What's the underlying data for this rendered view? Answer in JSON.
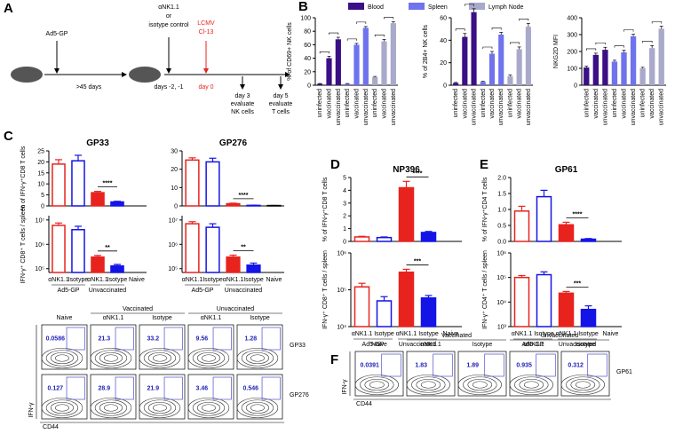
{
  "panel_labels": [
    "A",
    "B",
    "C",
    "D",
    "E",
    "F"
  ],
  "timeline": {
    "vaccine": "Ad5-GP",
    "interval": ">45 days",
    "treatment": [
      "αNK1.1",
      "or",
      "isotype control"
    ],
    "treatment_days": "days -2, -1",
    "infection": [
      "LCMV",
      "Cl-13"
    ],
    "infection_day": "day 0",
    "eval_nk": [
      "day 3",
      "evaluate",
      "NK cells"
    ],
    "eval_t": [
      "day 5",
      "evaluate",
      "T cells"
    ]
  },
  "chart_data": [
    {
      "type": "bar",
      "ylabel": "% of CD69+ NK cells",
      "categories": [
        "uninfected",
        "vaccinated",
        "unvaccinated"
      ],
      "series": [
        {
          "name": "Blood",
          "color": "#3b0f86",
          "values": [
            2,
            40,
            68
          ],
          "errors": [
            0.5,
            3,
            3
          ]
        },
        {
          "name": "Spleen",
          "color": "#6f73ee",
          "values": [
            2,
            60,
            85
          ],
          "errors": [
            0.5,
            2,
            2
          ]
        },
        {
          "name": "Lymph Node",
          "color": "#a9a9cb",
          "values": [
            12,
            65,
            92
          ],
          "errors": [
            1,
            3,
            2
          ]
        }
      ],
      "ylim": [
        0,
        100
      ],
      "yticks": [
        0,
        20,
        40,
        60,
        80,
        100
      ]
    },
    {
      "type": "bar",
      "ylabel": "% of 2B4+ NK cells",
      "categories": [
        "uninfected",
        "vaccinated",
        "unvaccinated"
      ],
      "series": [
        {
          "color": "#3b0f86",
          "values": [
            2,
            43,
            65
          ],
          "errors": [
            0.5,
            3,
            3
          ]
        },
        {
          "color": "#6f73ee",
          "values": [
            3,
            28,
            45
          ],
          "errors": [
            0.5,
            2,
            2
          ]
        },
        {
          "color": "#a9a9cb",
          "values": [
            8,
            32,
            52
          ],
          "errors": [
            1,
            2,
            3
          ]
        }
      ],
      "ylim": [
        0,
        60
      ],
      "yticks": [
        0,
        20,
        40,
        60
      ]
    },
    {
      "type": "bar",
      "ylabel": "NKG2D MFI",
      "categories": [
        "uninfected",
        "vaccinated",
        "unvaccinated"
      ],
      "series": [
        {
          "color": "#3b0f86",
          "values": [
            105,
            180,
            210
          ],
          "errors": [
            8,
            10,
            15
          ]
        },
        {
          "color": "#6f73ee",
          "values": [
            140,
            195,
            290
          ],
          "errors": [
            8,
            12,
            12
          ]
        },
        {
          "color": "#a9a9cb",
          "values": [
            100,
            220,
            335
          ],
          "errors": [
            6,
            15,
            15
          ]
        }
      ],
      "ylim": [
        0,
        400
      ],
      "yticks": [
        0,
        100,
        200,
        300,
        400
      ]
    },
    {
      "type": "bar",
      "title": "GP33",
      "ylabel": "% of IFN-γ⁺CD8 T cells",
      "values": [
        19,
        20.5,
        6,
        1.8,
        null
      ],
      "errors": [
        2,
        2.5,
        0.6,
        0.3,
        null
      ],
      "colors": [
        "#e8231e",
        "#1414e6",
        "#e8231e",
        "#1414e6",
        "#000000"
      ],
      "filled": [
        false,
        false,
        true,
        true,
        false
      ],
      "annotation": "****",
      "ylim": [
        0,
        25
      ],
      "yticks": [
        0,
        5,
        10,
        15,
        20,
        25
      ]
    },
    {
      "type": "bar",
      "title": "GP276",
      "ylabel": "",
      "values": [
        25,
        24,
        1.2,
        0.3,
        0.2
      ],
      "errors": [
        1.2,
        2,
        0.3,
        0.1,
        0.05
      ],
      "colors": [
        "#e8231e",
        "#1414e6",
        "#e8231e",
        "#1414e6",
        "#000000"
      ],
      "filled": [
        false,
        false,
        true,
        true,
        false
      ],
      "annotation": "****",
      "ylim": [
        0,
        30
      ],
      "yticks": [
        0,
        10,
        20,
        30
      ]
    },
    {
      "type": "bar",
      "ylabel": "IFN-γ⁺ CD8⁺ T cells / spleen",
      "categories": [
        "αNK1.1",
        "Isotype",
        "αNK1.1",
        "Isotype",
        "Naive"
      ],
      "groups": [
        "Ad5-GP",
        "Unvaccinated"
      ],
      "values": [
        6000000,
        4000000,
        300000,
        130000,
        null
      ],
      "errors": [
        1500000,
        1500000,
        50000,
        20000,
        null
      ],
      "colors": [
        "#e8231e",
        "#1414e6",
        "#e8231e",
        "#1414e6",
        "#000000"
      ],
      "filled": [
        false,
        false,
        true,
        true,
        false
      ],
      "annotation": "**",
      "log_scale": true,
      "ylim": [
        70000,
        15000000
      ],
      "yticks": [
        {
          "value": 100000,
          "label": "10⁵"
        },
        {
          "value": 1000000,
          "label": "10⁶"
        },
        {
          "value": 10000000,
          "label": "10⁷"
        }
      ]
    },
    {
      "type": "bar",
      "ylabel": "",
      "categories": [
        "αNK1.1",
        "Isotype",
        "αNK1.1",
        "Isotype",
        "Naive"
      ],
      "groups": [
        "Ad5-GP",
        "Unvaccinated"
      ],
      "values": [
        7000000,
        5000000,
        300000,
        140000,
        null
      ],
      "errors": [
        1500000,
        2000000,
        60000,
        30000,
        null
      ],
      "colors": [
        "#e8231e",
        "#1414e6",
        "#e8231e",
        "#1414e6",
        "#000000"
      ],
      "filled": [
        false,
        false,
        true,
        true,
        false
      ],
      "annotation": "**",
      "log_scale": true,
      "ylim": [
        70000,
        15000000
      ],
      "yticks": [
        {
          "value": 100000,
          "label": "10⁵"
        },
        {
          "value": 1000000,
          "label": "10⁶"
        },
        {
          "value": 10000000,
          "label": "10⁷"
        }
      ]
    },
    {
      "type": "bar",
      "title": "NP396",
      "ylabel": "% of IFN-γ⁺CD8 T cells",
      "values": [
        0.35,
        0.3,
        4.2,
        0.7,
        null
      ],
      "errors": [
        0.05,
        0.05,
        0.5,
        0.08,
        null
      ],
      "colors": [
        "#e8231e",
        "#1414e6",
        "#e8231e",
        "#1414e6",
        "#000000"
      ],
      "filled": [
        false,
        false,
        true,
        true,
        false
      ],
      "annotation": "****",
      "ylim": [
        0,
        5
      ],
      "yticks": [
        0,
        1,
        2,
        3,
        4,
        5
      ]
    },
    {
      "type": "bar",
      "ylabel": "IFN-γ⁺ CD8⁺ T cells / spleen",
      "categories": [
        "αNK1.1",
        "Isotype",
        "αNK1.1",
        "Isotype",
        "Naive"
      ],
      "groups": [
        "Ad5-GP",
        "Unvaccinated"
      ],
      "values": [
        120000,
        50000,
        300000,
        60000,
        null
      ],
      "errors": [
        30000,
        15000,
        60000,
        10000,
        null
      ],
      "colors": [
        "#e8231e",
        "#1414e6",
        "#e8231e",
        "#1414e6",
        "#000000"
      ],
      "filled": [
        false,
        false,
        true,
        true,
        false
      ],
      "annotation": "***",
      "log_scale": true,
      "ylim": [
        10000,
        1000000
      ],
      "yticks": [
        {
          "value": 10000,
          "label": "10⁴"
        },
        {
          "value": 100000,
          "label": "10⁵"
        },
        {
          "value": 1000000,
          "label": "10⁶"
        }
      ]
    },
    {
      "type": "bar",
      "title": "GP61",
      "ylabel": "% of IFN-γ⁺CD4 T cells",
      "values": [
        0.95,
        1.4,
        0.52,
        0.07,
        null
      ],
      "errors": [
        0.15,
        0.2,
        0.08,
        0.02,
        null
      ],
      "colors": [
        "#e8231e",
        "#1414e6",
        "#e8231e",
        "#1414e6",
        "#000000"
      ],
      "filled": [
        false,
        false,
        true,
        true,
        false
      ],
      "annotation": "****",
      "ylim": [
        0,
        2
      ],
      "yticks": [
        {
          "value": 0,
          "label": "0.0"
        },
        {
          "value": 0.5,
          "label": "0.5"
        },
        {
          "value": 1,
          "label": "1.0"
        },
        {
          "value": 1.5,
          "label": "1.5"
        },
        {
          "value": 2,
          "label": "2.0"
        }
      ]
    },
    {
      "type": "bar",
      "ylabel": "IFN-γ⁺ CD4⁺ T cells / spleen",
      "categories": [
        "αNK1.1",
        "Isotype",
        "αNK1.1",
        "Isotype",
        "Naive"
      ],
      "groups": [
        "Ad5-GP",
        "Unvaccinated"
      ],
      "values": [
        100000,
        130000,
        23000,
        5000,
        null
      ],
      "errors": [
        20000,
        40000,
        4000,
        2000,
        null
      ],
      "colors": [
        "#e8231e",
        "#1414e6",
        "#e8231e",
        "#1414e6",
        "#000000"
      ],
      "filled": [
        false,
        false,
        true,
        true,
        false
      ],
      "annotation": "***",
      "log_scale": true,
      "ylim": [
        1000,
        1000000
      ],
      "yticks": [
        {
          "value": 1000,
          "label": "10³"
        },
        {
          "value": 10000,
          "label": "10⁴"
        },
        {
          "value": 100000,
          "label": "10⁵"
        },
        {
          "value": 1000000,
          "label": "10⁶"
        }
      ]
    }
  ],
  "flow_c": {
    "headers": [
      "Naive",
      "αNK1.1",
      "Isotype",
      "αNK1.1",
      "Isotype"
    ],
    "groups": [
      "Vaccinated",
      "Unvaccinated"
    ],
    "rows": [
      {
        "label": "GP33",
        "values": [
          0.0586,
          21.3,
          33.2,
          9.56,
          1.28
        ]
      },
      {
        "label": "GP276",
        "values": [
          0.127,
          28.9,
          21.9,
          3.46,
          0.546
        ]
      }
    ],
    "y_label": "IFN-γ",
    "x_label": "CD44"
  },
  "flow_f": {
    "headers": [
      "Naive",
      "αNK1.1",
      "Isotype",
      "αNK1.1",
      "Isotype"
    ],
    "groups": [
      "Vaccinated",
      "Unvaccinated"
    ],
    "rows": [
      {
        "label": "GP61",
        "values": [
          0.0391,
          1.83,
          1.89,
          0.935,
          0.312
        ]
      }
    ],
    "y_label": "IFN-γ",
    "x_label": "CD44"
  }
}
